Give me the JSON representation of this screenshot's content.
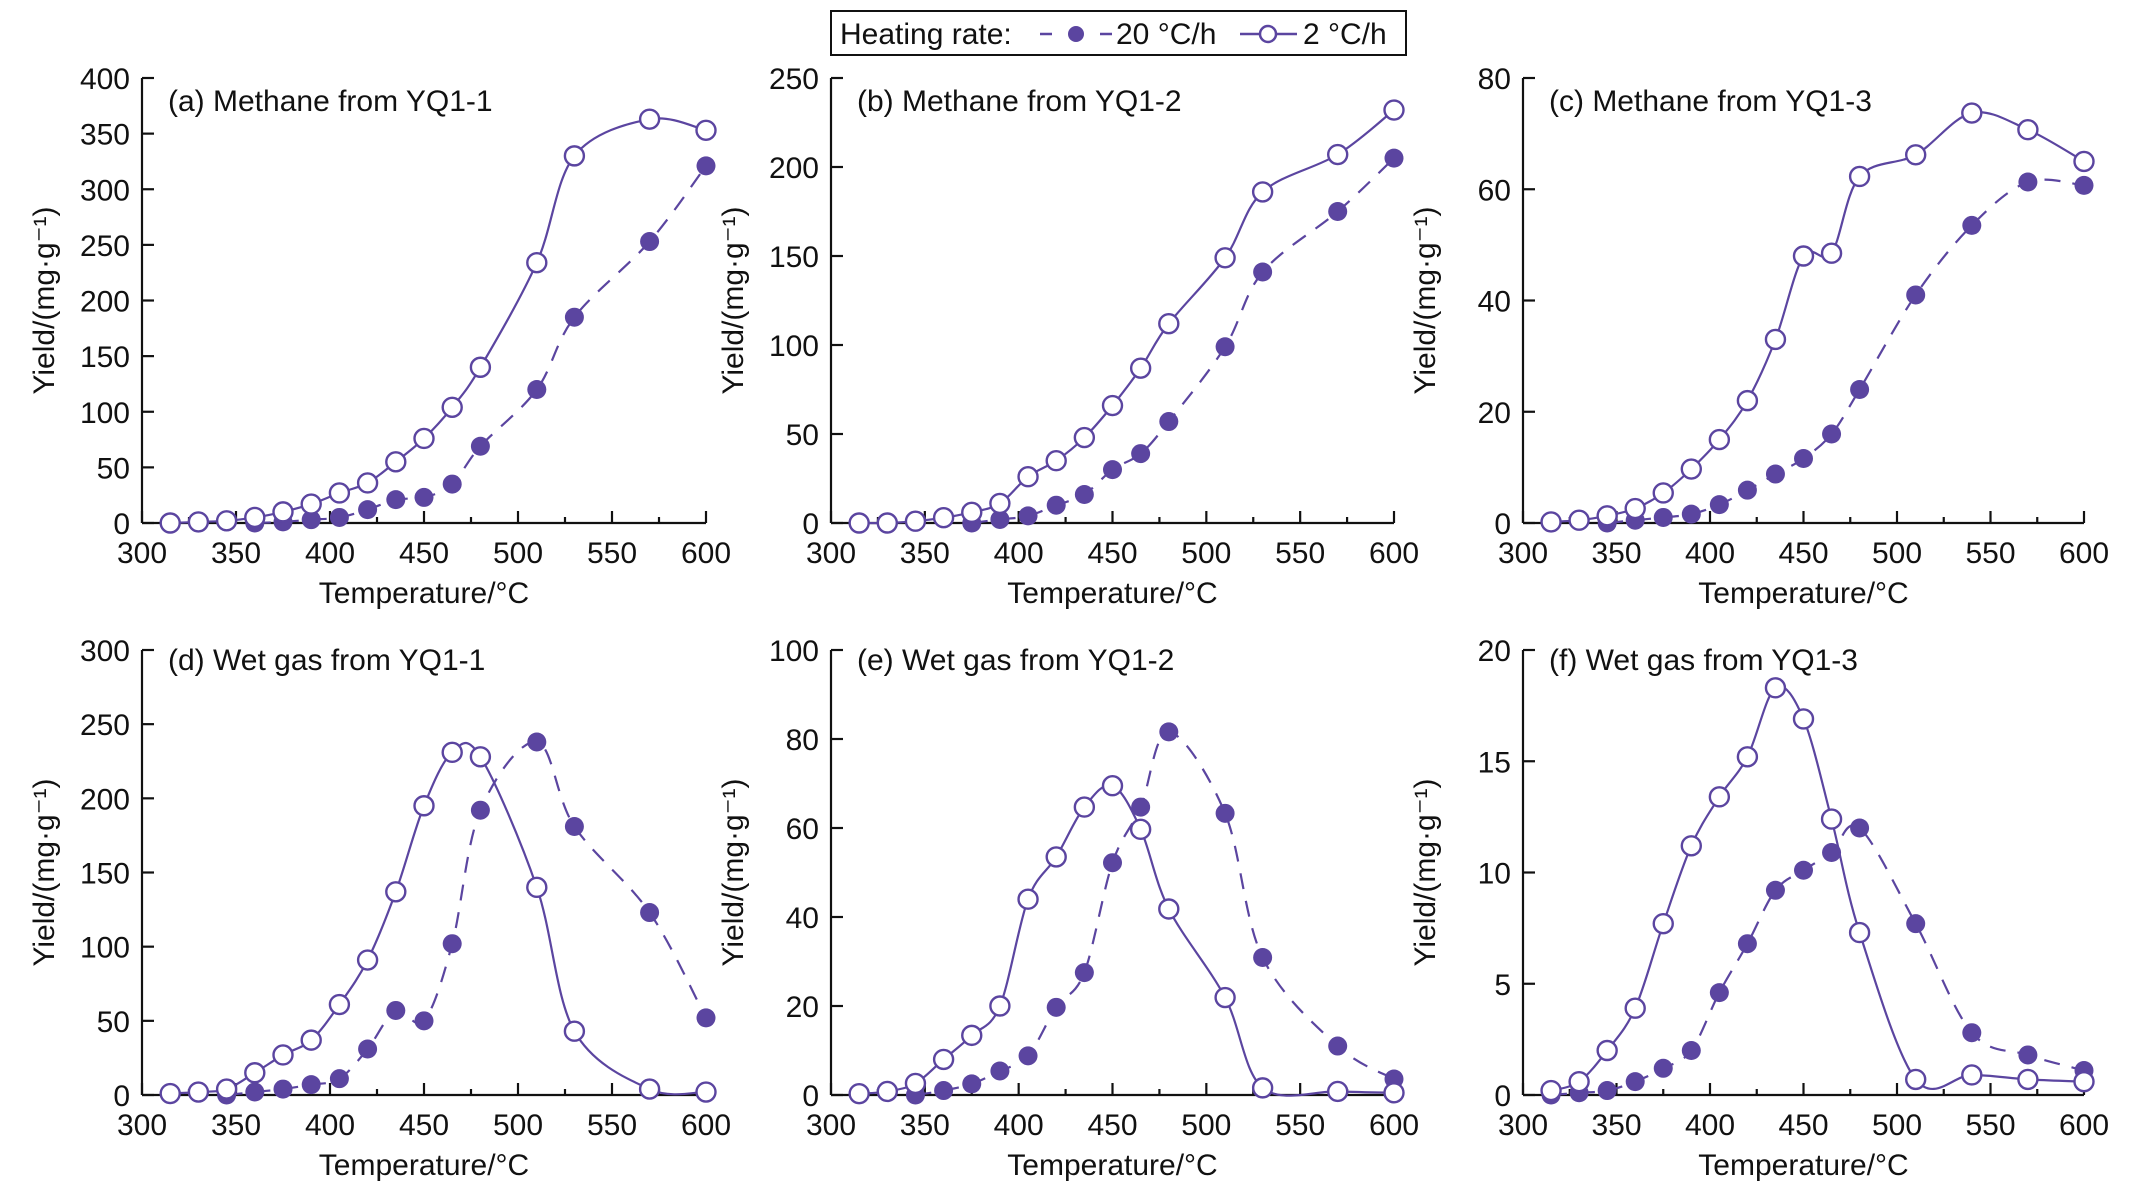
{
  "legend": {
    "title": "Heating rate:",
    "entries": [
      {
        "name": "20 °C/h",
        "style": "dashed-filled"
      },
      {
        "name": "2 °C/h",
        "style": "solid-open"
      }
    ]
  },
  "colors": {
    "series": "#5b45a0",
    "axis": "#111111"
  },
  "chart_data": [
    {
      "type": "line",
      "panel": "a",
      "title": "(a) Methane from YQ1-1",
      "xlabel": "Temperature/°C",
      "ylabel": "Yield/(mg·g⁻¹)",
      "xlim": [
        300,
        600
      ],
      "ylim": [
        0,
        400
      ],
      "xticks": [
        300,
        350,
        400,
        450,
        500,
        550,
        600
      ],
      "yticks": [
        0,
        50,
        100,
        150,
        200,
        250,
        300,
        350,
        400
      ],
      "series": [
        {
          "name": "20 °C/h",
          "x": [
            360,
            375,
            390,
            405,
            420,
            435,
            450,
            465,
            480,
            510,
            530,
            570,
            600
          ],
          "y": [
            0,
            1,
            3,
            5,
            12,
            21,
            23,
            35,
            69,
            120,
            185,
            253,
            321
          ]
        },
        {
          "name": "2 °C/h",
          "x": [
            315,
            330,
            345,
            360,
            375,
            390,
            405,
            420,
            435,
            450,
            465,
            480,
            510,
            530,
            570,
            600
          ],
          "y": [
            0,
            1,
            2,
            5,
            10,
            17,
            27,
            36,
            55,
            76,
            104,
            140,
            234,
            330,
            363,
            353
          ]
        }
      ]
    },
    {
      "type": "line",
      "panel": "b",
      "title": "(b) Methane from YQ1-2",
      "xlabel": "Temperature/°C",
      "ylabel": "Yield/(mg·g⁻¹)",
      "xlim": [
        300,
        600
      ],
      "ylim": [
        0,
        250
      ],
      "xticks": [
        300,
        350,
        400,
        450,
        500,
        550,
        600
      ],
      "yticks": [
        0,
        50,
        100,
        150,
        200,
        250
      ],
      "series": [
        {
          "name": "20 °C/h",
          "x": [
            375,
            390,
            405,
            420,
            435,
            450,
            465,
            480,
            510,
            530,
            570,
            600
          ],
          "y": [
            0,
            2,
            4,
            10,
            16,
            30,
            39,
            57,
            99,
            141,
            175,
            205
          ]
        },
        {
          "name": "2 °C/h",
          "x": [
            315,
            330,
            345,
            360,
            375,
            390,
            405,
            420,
            435,
            450,
            465,
            480,
            510,
            530,
            570,
            600
          ],
          "y": [
            0,
            0,
            1,
            3,
            6,
            11,
            26,
            35,
            48,
            66,
            87,
            112,
            149,
            186,
            207,
            232
          ]
        }
      ]
    },
    {
      "type": "line",
      "panel": "c",
      "title": "(c) Methane from YQ1-3",
      "xlabel": "Temperature/°C",
      "ylabel": "Yield/(mg·g⁻¹)",
      "xlim": [
        300,
        600
      ],
      "ylim": [
        0,
        80
      ],
      "xticks": [
        300,
        350,
        400,
        450,
        500,
        550,
        600
      ],
      "yticks": [
        0,
        20,
        40,
        60,
        80
      ],
      "series": [
        {
          "name": "20 °C/h",
          "x": [
            345,
            360,
            375,
            390,
            405,
            420,
            435,
            450,
            465,
            480,
            510,
            540,
            570,
            600
          ],
          "y": [
            0,
            0.5,
            1,
            1.6,
            3.3,
            5.9,
            8.8,
            11.6,
            16,
            24,
            41,
            53.5,
            61.3,
            60.7
          ]
        },
        {
          "name": "2 °C/h",
          "x": [
            315,
            330,
            345,
            360,
            375,
            390,
            405,
            420,
            435,
            450,
            465,
            480,
            510,
            540,
            570,
            600
          ],
          "y": [
            0.2,
            0.5,
            1.3,
            2.6,
            5.4,
            9.7,
            15,
            22,
            33,
            48,
            48.5,
            62.3,
            66.2,
            73.7,
            70.7,
            65
          ]
        }
      ]
    },
    {
      "type": "line",
      "panel": "d",
      "title": "(d) Wet gas from YQ1-1",
      "xlabel": "Temperature/°C",
      "ylabel": "Yield/(mg·g⁻¹)",
      "xlim": [
        300,
        600
      ],
      "ylim": [
        0,
        300
      ],
      "xticks": [
        300,
        350,
        400,
        450,
        500,
        550,
        600
      ],
      "yticks": [
        0,
        50,
        100,
        150,
        200,
        250,
        300
      ],
      "series": [
        {
          "name": "20 °C/h",
          "x": [
            345,
            360,
            375,
            390,
            405,
            420,
            435,
            450,
            465,
            480,
            510,
            530,
            570,
            600
          ],
          "y": [
            0,
            2,
            4,
            7,
            11,
            31,
            57,
            50,
            102,
            192,
            238,
            181,
            123,
            52
          ]
        },
        {
          "name": "2 °C/h",
          "x": [
            315,
            330,
            345,
            360,
            375,
            390,
            405,
            420,
            435,
            450,
            465,
            480,
            510,
            530,
            570,
            600
          ],
          "y": [
            1,
            2,
            4,
            15,
            27,
            37,
            61,
            91,
            137,
            195,
            231,
            228,
            140,
            43,
            4,
            2
          ]
        }
      ]
    },
    {
      "type": "line",
      "panel": "e",
      "title": "(e) Wet gas from YQ1-2",
      "xlabel": "Temperature/°C",
      "ylabel": "Yield/(mg·g⁻¹)",
      "xlim": [
        300,
        600
      ],
      "ylim": [
        0,
        100
      ],
      "xticks": [
        300,
        350,
        400,
        450,
        500,
        550,
        600
      ],
      "yticks": [
        0,
        20,
        40,
        60,
        80,
        100
      ],
      "series": [
        {
          "name": "20 °C/h",
          "x": [
            345,
            360,
            375,
            390,
            405,
            420,
            435,
            450,
            465,
            480,
            510,
            530,
            570,
            600
          ],
          "y": [
            0,
            1,
            2.5,
            5.4,
            8.8,
            19.7,
            27.5,
            52.2,
            64.7,
            81.6,
            63.3,
            30.9,
            11,
            3.6
          ]
        },
        {
          "name": "2 °C/h",
          "x": [
            315,
            330,
            345,
            360,
            375,
            390,
            405,
            420,
            435,
            450,
            465,
            480,
            510,
            530,
            570,
            600
          ],
          "y": [
            0.3,
            0.8,
            2.6,
            8,
            13.4,
            20,
            44,
            53.5,
            64.7,
            69.5,
            59.7,
            41.8,
            21.9,
            1.6,
            0.8,
            0.5
          ]
        }
      ]
    },
    {
      "type": "line",
      "panel": "f",
      "title": "(f) Wet gas from YQ1-3",
      "xlabel": "Temperature/°C",
      "ylabel": "Yield/(mg·g⁻¹)",
      "xlim": [
        300,
        600
      ],
      "ylim": [
        0,
        20
      ],
      "xticks": [
        300,
        350,
        400,
        450,
        500,
        550,
        600
      ],
      "yticks": [
        0,
        5,
        10,
        15,
        20
      ],
      "series": [
        {
          "name": "20 °C/h",
          "x": [
            315,
            330,
            345,
            360,
            375,
            390,
            405,
            420,
            435,
            450,
            465,
            480,
            510,
            540,
            570,
            600
          ],
          "y": [
            0,
            0.1,
            0.2,
            0.6,
            1.2,
            2,
            4.6,
            6.8,
            9.2,
            10.1,
            10.9,
            12,
            7.7,
            2.8,
            1.8,
            1.1
          ]
        },
        {
          "name": "2 °C/h",
          "x": [
            315,
            330,
            345,
            360,
            375,
            390,
            405,
            420,
            435,
            450,
            465,
            480,
            510,
            540,
            570,
            600
          ],
          "y": [
            0.2,
            0.6,
            2,
            3.9,
            7.7,
            11.2,
            13.4,
            15.2,
            18.3,
            16.9,
            12.4,
            7.3,
            0.7,
            0.9,
            0.7,
            0.6
          ]
        }
      ]
    }
  ]
}
